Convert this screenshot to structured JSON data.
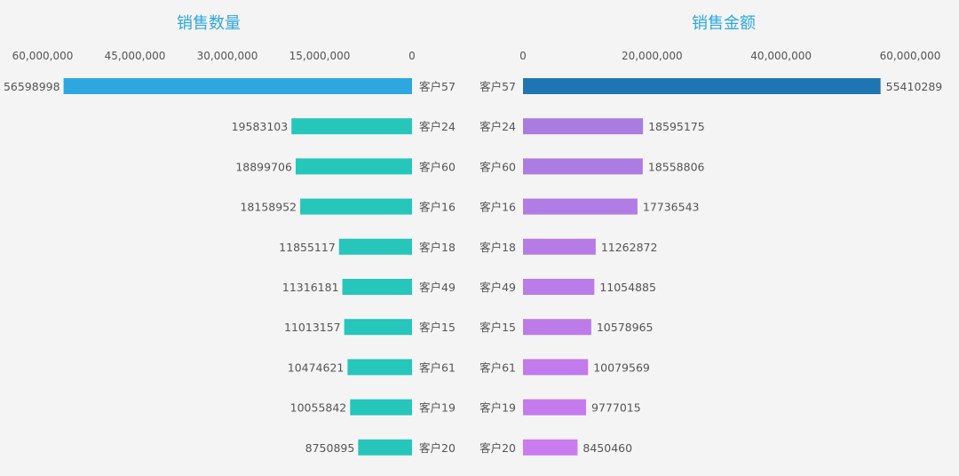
{
  "chart_data": [
    {
      "type": "bar",
      "orientation": "horizontal",
      "direction": "reversed",
      "title": "销售数量",
      "categories": [
        "客户57",
        "客户24",
        "客户60",
        "客户16",
        "客户18",
        "客户49",
        "客户15",
        "客户61",
        "客户19",
        "客户20"
      ],
      "values": [
        56598998,
        19583103,
        18899706,
        18158952,
        11855117,
        11316181,
        11013157,
        10474621,
        10055842,
        8750895
      ],
      "xlim": [
        0,
        60000000
      ],
      "ticks": [
        60000000,
        45000000,
        30000000,
        15000000,
        0
      ],
      "tick_labels": [
        "60,000,000",
        "45,000,000",
        "30,000,000",
        "15,000,000",
        "0"
      ],
      "top_bar_color": "#2ea7e0",
      "bar_color": "#26c6bb"
    },
    {
      "type": "bar",
      "orientation": "horizontal",
      "direction": "normal",
      "title": "销售金额",
      "categories": [
        "客户57",
        "客户24",
        "客户60",
        "客户16",
        "客户18",
        "客户49",
        "客户15",
        "客户61",
        "客户19",
        "客户20"
      ],
      "values": [
        55410289,
        18595175,
        18558806,
        17736543,
        11262872,
        11054885,
        10578965,
        10079569,
        9777015,
        8450460
      ],
      "xlim": [
        0,
        60000000
      ],
      "ticks": [
        0,
        20000000,
        40000000,
        60000000
      ],
      "tick_labels": [
        "0",
        "20,000,000",
        "40,000,000",
        "60,000,000"
      ],
      "top_bar_color": "#1f74b4",
      "bar_color_start": "#a97ce0",
      "bar_color_end": "#c97bf0"
    }
  ]
}
